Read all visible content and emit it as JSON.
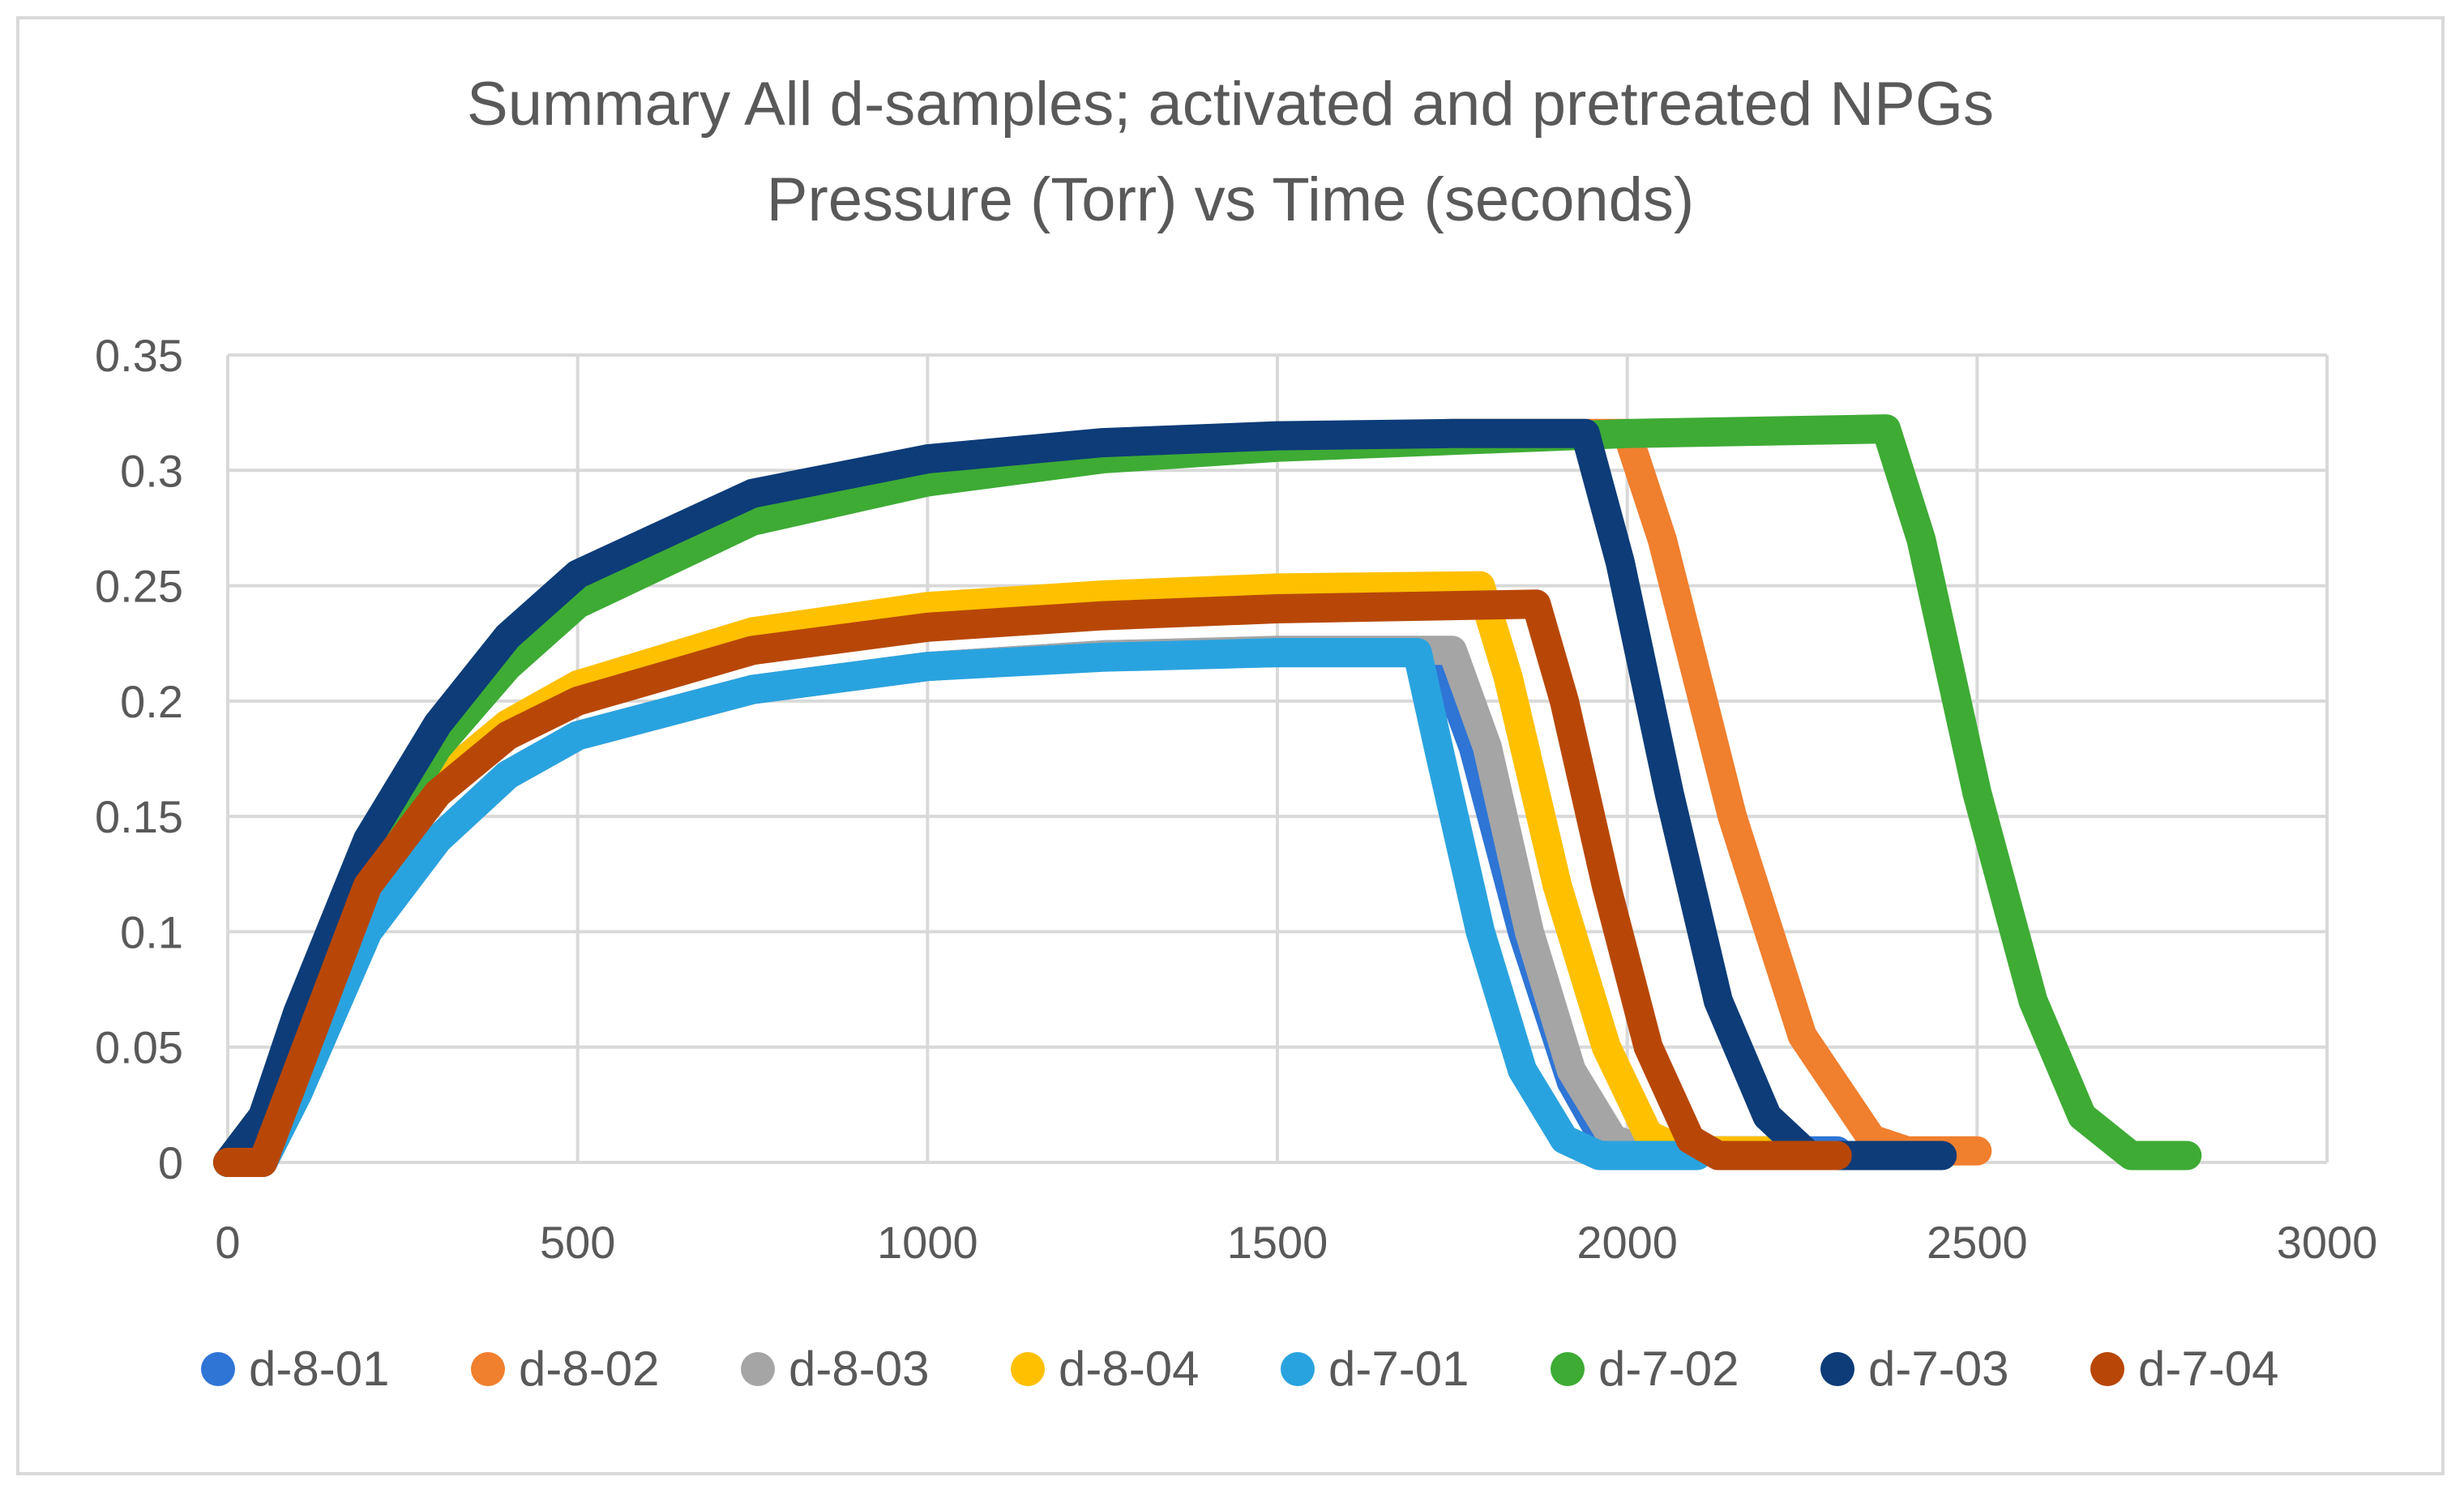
{
  "chart_data": {
    "type": "scatter",
    "title": "Summary All d-samples; activated and pretreated NPGs",
    "subtitle": "Pressure (Torr) vs Time (seconds)",
    "xlabel": "",
    "ylabel": "",
    "xlim": [
      0,
      3000
    ],
    "ylim": [
      0,
      0.35
    ],
    "x_ticks": [
      "0",
      "500",
      "1000",
      "1500",
      "2000",
      "2500",
      "3000"
    ],
    "y_ticks": [
      "0",
      "0.05",
      "0.1",
      "0.15",
      "0.2",
      "0.25",
      "0.3",
      "0.35"
    ],
    "grid": true,
    "legend_position": "bottom",
    "series": [
      {
        "name": "d-8-01",
        "color": "#2e75d6",
        "x": [
          0,
          50,
          100,
          200,
          300,
          400,
          500,
          750,
          1000,
          1250,
          1500,
          1730,
          1780,
          1850,
          1920,
          1970,
          2000,
          2100,
          2200,
          2300
        ],
        "y": [
          0,
          0,
          0.03,
          0.1,
          0.14,
          0.168,
          0.185,
          0.205,
          0.215,
          0.22,
          0.221,
          0.221,
          0.18,
          0.1,
          0.035,
          0.008,
          0.005,
          0.005,
          0.005,
          0.005
        ]
      },
      {
        "name": "d-8-02",
        "color": "#f07f2e",
        "x": [
          0,
          50,
          100,
          200,
          300,
          400,
          500,
          750,
          1000,
          1250,
          1500,
          1750,
          2000,
          2050,
          2150,
          2250,
          2350,
          2400,
          2500
        ],
        "y": [
          0,
          0.02,
          0.06,
          0.135,
          0.185,
          0.22,
          0.248,
          0.285,
          0.302,
          0.311,
          0.314,
          0.316,
          0.316,
          0.27,
          0.15,
          0.055,
          0.01,
          0.005,
          0.005
        ]
      },
      {
        "name": "d-8-03",
        "color": "#a5a5a5",
        "x": [
          0,
          50,
          100,
          200,
          300,
          400,
          500,
          750,
          1000,
          1250,
          1500,
          1750,
          1800,
          1860,
          1920,
          1980,
          2030,
          2100,
          2200
        ],
        "y": [
          0,
          0,
          0.03,
          0.1,
          0.14,
          0.168,
          0.185,
          0.205,
          0.215,
          0.22,
          0.222,
          0.222,
          0.18,
          0.1,
          0.04,
          0.01,
          0.005,
          0.005,
          0.005
        ]
      },
      {
        "name": "d-8-04",
        "color": "#ffc000",
        "x": [
          0,
          50,
          100,
          200,
          300,
          400,
          500,
          750,
          1000,
          1250,
          1500,
          1790,
          1830,
          1900,
          1970,
          2030,
          2080,
          2150,
          2250
        ],
        "y": [
          0,
          0,
          0.04,
          0.12,
          0.165,
          0.19,
          0.207,
          0.23,
          0.241,
          0.246,
          0.249,
          0.25,
          0.21,
          0.12,
          0.05,
          0.012,
          0.005,
          0.005,
          0.005
        ]
      },
      {
        "name": "d-7-01",
        "color": "#29a3df",
        "x": [
          0,
          50,
          100,
          200,
          300,
          400,
          500,
          750,
          1000,
          1250,
          1500,
          1700,
          1730,
          1790,
          1850,
          1910,
          1960,
          2000,
          2100
        ],
        "y": [
          0,
          0,
          0.03,
          0.1,
          0.14,
          0.168,
          0.185,
          0.205,
          0.215,
          0.219,
          0.221,
          0.221,
          0.18,
          0.1,
          0.04,
          0.01,
          0.003,
          0.003,
          0.003
        ]
      },
      {
        "name": "d-7-02",
        "color": "#3eab35",
        "x": [
          0,
          50,
          100,
          200,
          300,
          400,
          500,
          750,
          1000,
          1250,
          1500,
          1750,
          2000,
          2370,
          2420,
          2500,
          2580,
          2650,
          2720,
          2800
        ],
        "y": [
          0,
          0.02,
          0.06,
          0.13,
          0.18,
          0.215,
          0.242,
          0.278,
          0.295,
          0.305,
          0.31,
          0.313,
          0.316,
          0.318,
          0.27,
          0.16,
          0.07,
          0.02,
          0.003,
          0.003
        ]
      },
      {
        "name": "d-7-03",
        "color": "#0d3c78",
        "x": [
          0,
          50,
          100,
          200,
          300,
          400,
          500,
          750,
          1000,
          1250,
          1500,
          1750,
          1940,
          1990,
          2060,
          2130,
          2200,
          2260,
          2350,
          2450
        ],
        "y": [
          0,
          0.02,
          0.065,
          0.14,
          0.19,
          0.228,
          0.255,
          0.29,
          0.305,
          0.312,
          0.315,
          0.316,
          0.316,
          0.26,
          0.16,
          0.07,
          0.02,
          0.003,
          0.003,
          0.003
        ]
      },
      {
        "name": "d-7-04",
        "color": "#b84707",
        "x": [
          0,
          50,
          100,
          200,
          300,
          400,
          500,
          750,
          1000,
          1250,
          1500,
          1870,
          1910,
          1970,
          2030,
          2090,
          2130,
          2200,
          2300
        ],
        "y": [
          0,
          0,
          0.04,
          0.12,
          0.16,
          0.185,
          0.2,
          0.222,
          0.232,
          0.237,
          0.24,
          0.242,
          0.2,
          0.12,
          0.05,
          0.01,
          0.003,
          0.003,
          0.003
        ]
      }
    ]
  }
}
